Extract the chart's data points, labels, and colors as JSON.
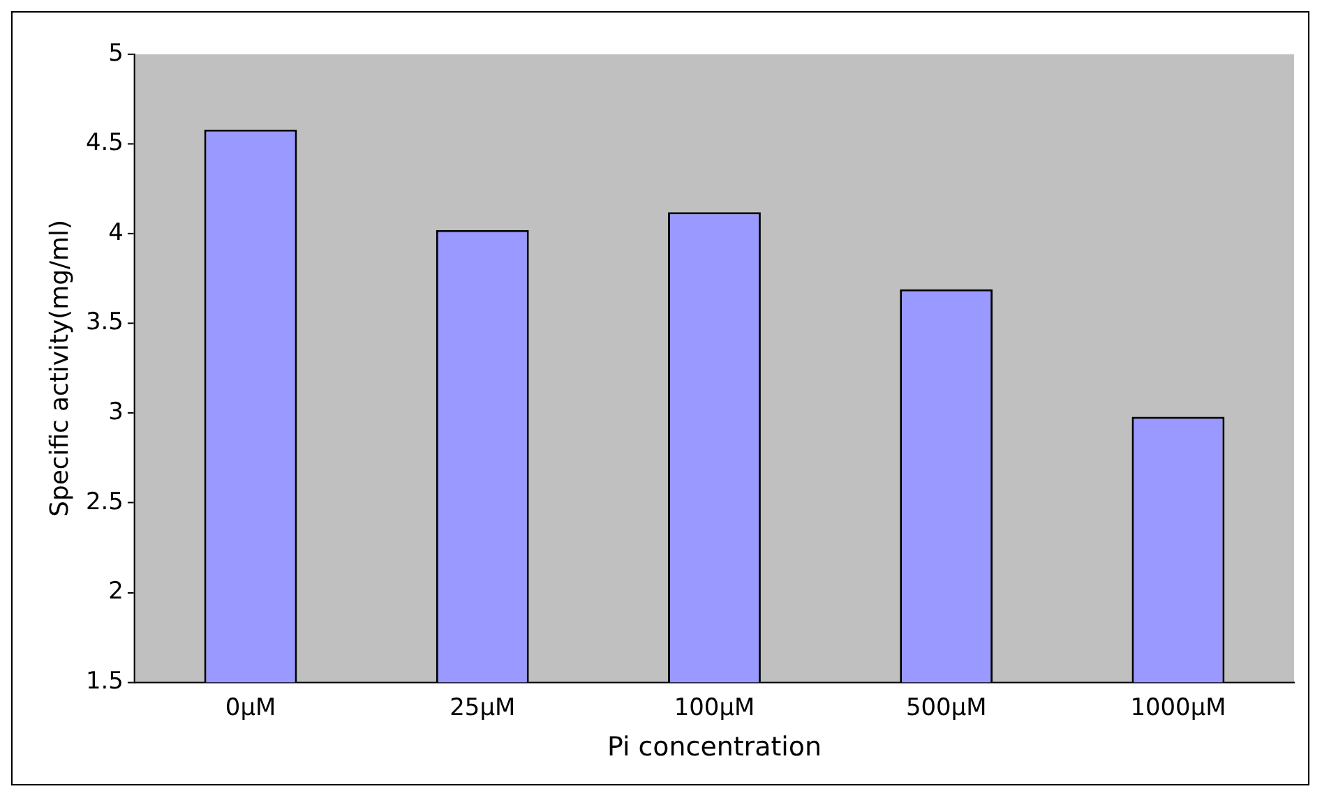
{
  "chart_data": {
    "type": "bar",
    "xlabel": "Pi concentration",
    "ylabel": "Specific activity(mg/ml)",
    "categories": [
      "0μM",
      "25μM",
      "100μM",
      "500μM",
      "1000μM"
    ],
    "values": [
      4.58,
      4.02,
      4.12,
      3.69,
      2.98
    ],
    "color": "#9999ff",
    "ylim": [
      1.5,
      5
    ],
    "yticks": [
      1.5,
      2,
      2.5,
      3,
      3.5,
      4,
      4.5,
      5
    ],
    "grid": false,
    "legend": false
  }
}
